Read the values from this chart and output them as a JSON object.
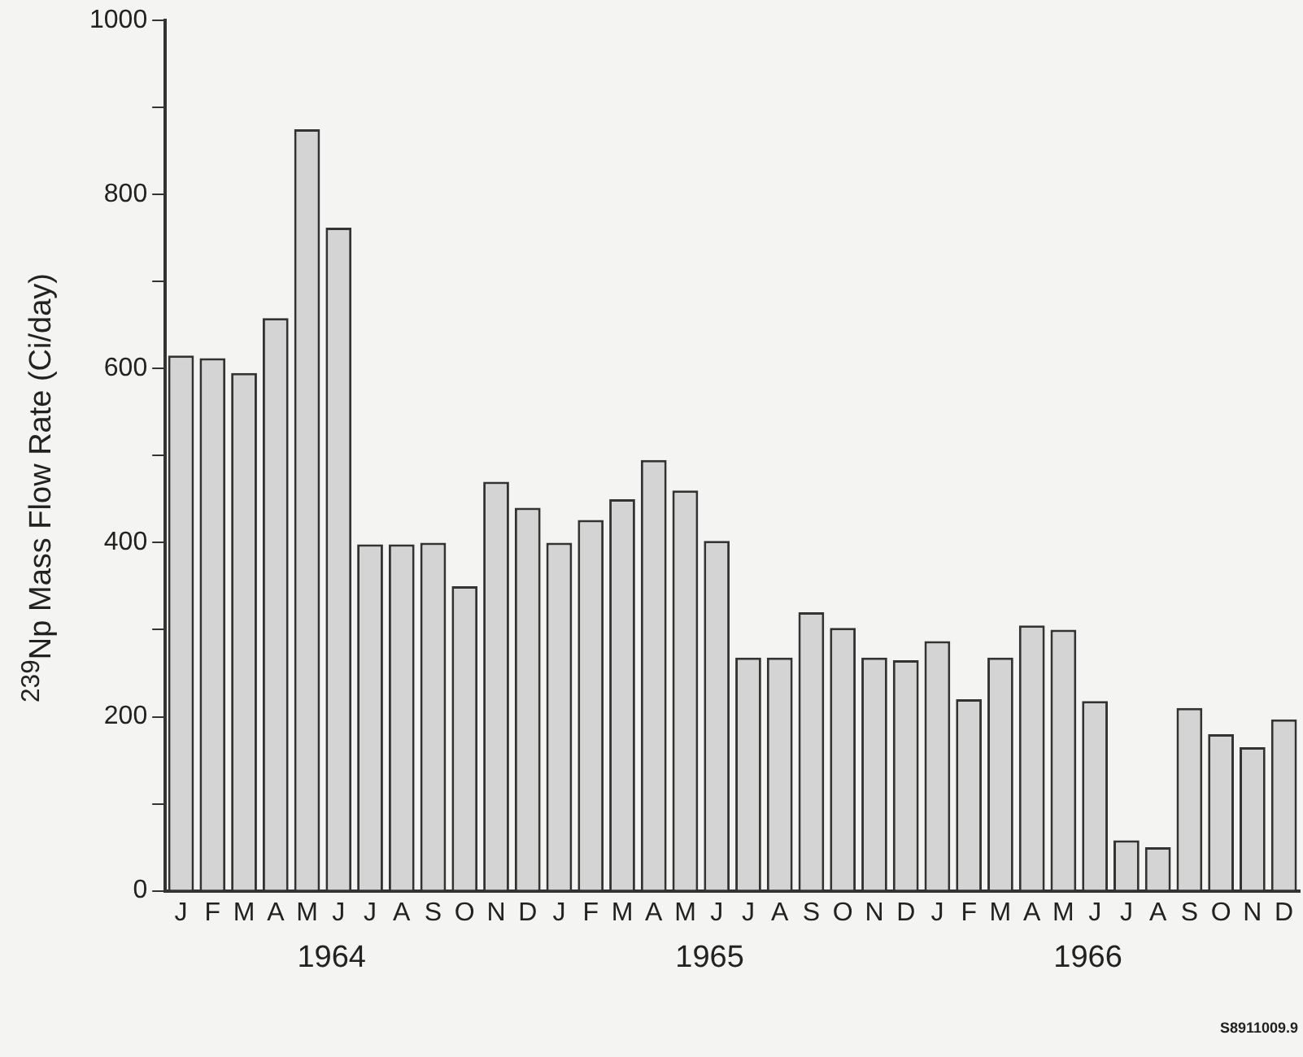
{
  "chart_data": {
    "type": "bar",
    "ylabel": "$^{239}$Np Mass Flow Rate (Ci/day)",
    "categories": [
      "J",
      "F",
      "M",
      "A",
      "M",
      "J",
      "J",
      "A",
      "S",
      "O",
      "N",
      "D",
      "J",
      "F",
      "M",
      "A",
      "M",
      "J",
      "J",
      "A",
      "S",
      "O",
      "N",
      "D",
      "J",
      "F",
      "M",
      "A",
      "M",
      "J",
      "J",
      "A",
      "S",
      "O",
      "N",
      "D"
    ],
    "values": [
      615,
      612,
      595,
      658,
      875,
      762,
      398,
      398,
      400,
      350,
      470,
      440,
      400,
      426,
      450,
      495,
      460,
      402,
      268,
      268,
      320,
      302,
      268,
      265,
      287,
      220,
      268,
      305,
      300,
      218,
      58,
      50,
      210,
      180,
      165,
      197
    ],
    "color": "#d4d4d4",
    "ylim": [
      0,
      1000
    ],
    "yticks": [
      0,
      {
        "value": 100,
        "label": null
      },
      200,
      {
        "value": 300,
        "label": null
      },
      400,
      {
        "value": 500,
        "label": null
      },
      600,
      {
        "value": 700,
        "label": null
      },
      800,
      {
        "value": 900,
        "label": null
      },
      1000
    ],
    "annotations": [
      "1964",
      "1965",
      "1966",
      "S8911009.9"
    ],
    "grid": false,
    "legend": false
  }
}
